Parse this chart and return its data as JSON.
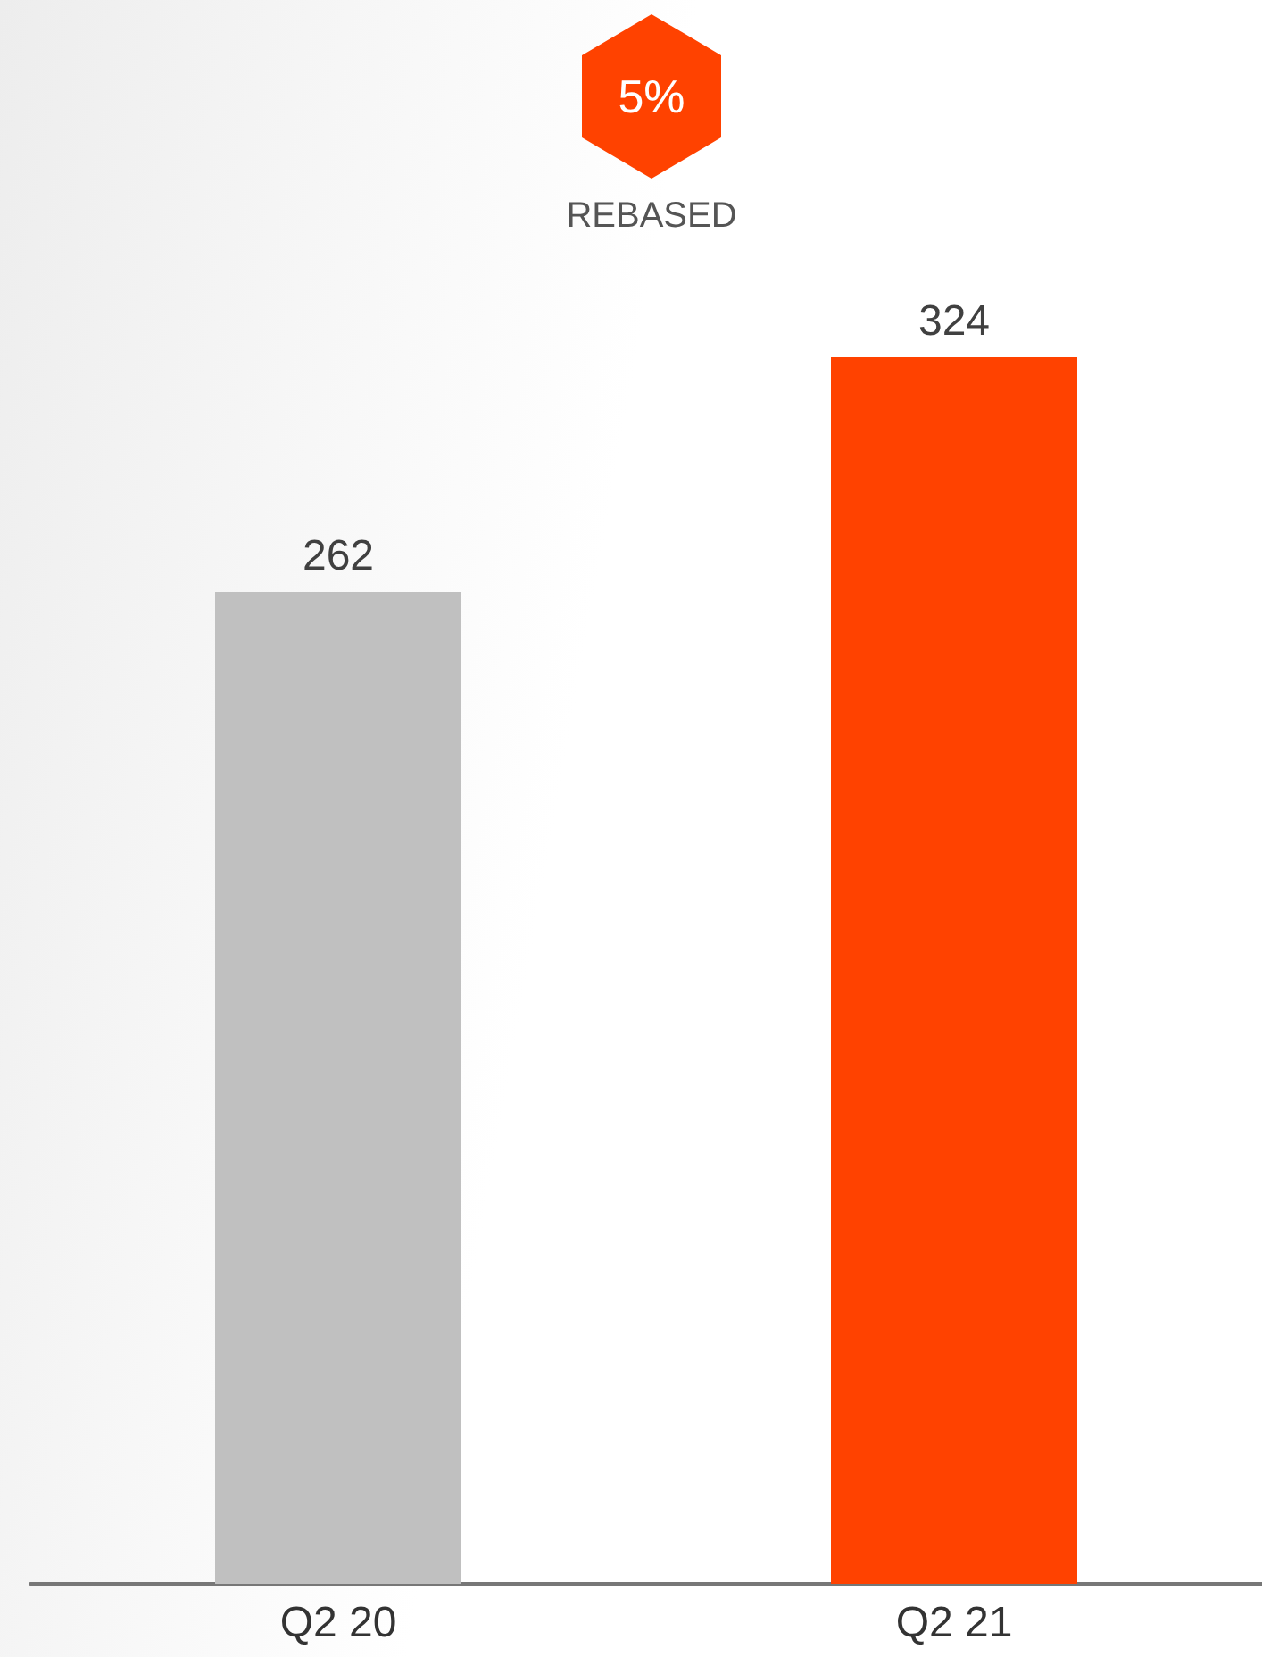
{
  "chart_data": {
    "type": "bar",
    "categories": [
      "Q2 20",
      "Q2 21"
    ],
    "values": [
      262,
      324
    ],
    "colors": [
      "#c0c0c0",
      "#ff4200"
    ],
    "ylim": [
      0,
      324
    ],
    "data_labels": true,
    "annotations": [
      "5%",
      "REBASED"
    ]
  }
}
